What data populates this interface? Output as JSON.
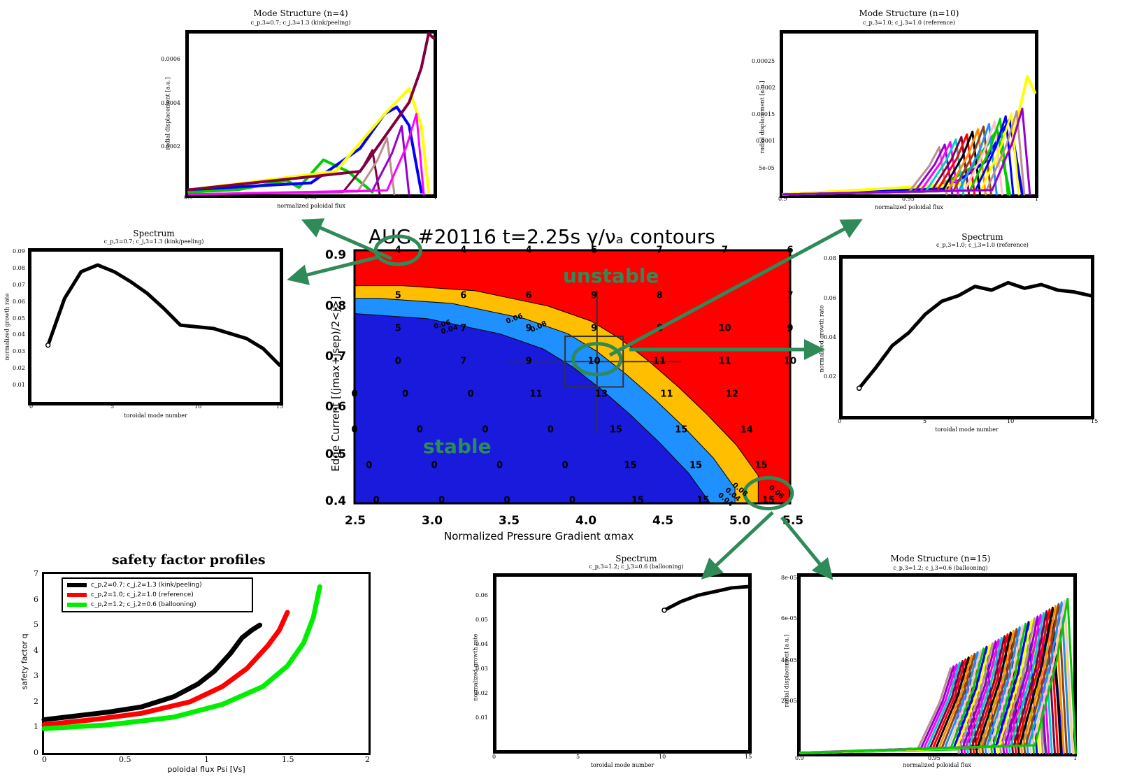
{
  "main": {
    "title": "AUG #20116 t=2.25s γ/νₐ contours",
    "xlabel": "Normalized Pressure Gradient αmax",
    "ylabel": "Edge Current  [(jmax+jsep)/2<j>]",
    "xticks": [
      "2.5",
      "3.0",
      "3.5",
      "4.0",
      "4.5",
      "5.0",
      "5.5"
    ],
    "yticks": [
      "0.4",
      "0.5",
      "0.6",
      "0.7",
      "0.8",
      "0.9"
    ],
    "unstable_label": "unstable",
    "stable_label": "stable",
    "colors": {
      "unstable": "#ff0000",
      "stable": "#1a1adc",
      "band_orange": "#ffbf00",
      "band_light": "#1e90ff",
      "arrow": "#2e8b57"
    },
    "contour_labels": [
      "0.06",
      "0.04",
      "0.06",
      "0.08",
      "0.04",
      "0.08",
      "0.06",
      "0.04"
    ],
    "grid_numbers": [
      {
        "t": "4",
        "x": 2.8,
        "y": 0.9
      },
      {
        "t": "4",
        "x": 3.25,
        "y": 0.9
      },
      {
        "t": "4",
        "x": 3.7,
        "y": 0.9
      },
      {
        "t": "6",
        "x": 4.15,
        "y": 0.9
      },
      {
        "t": "7",
        "x": 4.6,
        "y": 0.9
      },
      {
        "t": "7",
        "x": 5.05,
        "y": 0.9
      },
      {
        "t": "6",
        "x": 5.5,
        "y": 0.9
      },
      {
        "t": "5",
        "x": 2.8,
        "y": 0.81
      },
      {
        "t": "6",
        "x": 3.25,
        "y": 0.81
      },
      {
        "t": "6",
        "x": 3.7,
        "y": 0.81
      },
      {
        "t": "9",
        "x": 4.15,
        "y": 0.81
      },
      {
        "t": "8",
        "x": 4.6,
        "y": 0.81
      },
      {
        "t": "7",
        "x": 5.5,
        "y": 0.81
      },
      {
        "t": "5",
        "x": 2.8,
        "y": 0.745
      },
      {
        "t": "7",
        "x": 3.25,
        "y": 0.745
      },
      {
        "t": "9",
        "x": 3.7,
        "y": 0.745
      },
      {
        "t": "9",
        "x": 4.15,
        "y": 0.745
      },
      {
        "t": "8",
        "x": 4.6,
        "y": 0.745
      },
      {
        "t": "10",
        "x": 5.05,
        "y": 0.745
      },
      {
        "t": "9",
        "x": 5.5,
        "y": 0.745
      },
      {
        "t": "0",
        "x": 2.8,
        "y": 0.68
      },
      {
        "t": "7",
        "x": 3.25,
        "y": 0.68
      },
      {
        "t": "9",
        "x": 3.7,
        "y": 0.68
      },
      {
        "t": "10",
        "x": 4.15,
        "y": 0.68
      },
      {
        "t": "11",
        "x": 4.6,
        "y": 0.68
      },
      {
        "t": "11",
        "x": 5.05,
        "y": 0.68
      },
      {
        "t": "10",
        "x": 5.5,
        "y": 0.68
      },
      {
        "t": "0",
        "x": 2.5,
        "y": 0.615
      },
      {
        "t": "0",
        "x": 2.85,
        "y": 0.615
      },
      {
        "t": "0",
        "x": 3.3,
        "y": 0.615
      },
      {
        "t": "11",
        "x": 3.75,
        "y": 0.615
      },
      {
        "t": "13",
        "x": 4.2,
        "y": 0.615
      },
      {
        "t": "11",
        "x": 4.65,
        "y": 0.615
      },
      {
        "t": "12",
        "x": 5.1,
        "y": 0.615
      },
      {
        "t": "0",
        "x": 2.5,
        "y": 0.545
      },
      {
        "t": "0",
        "x": 2.95,
        "y": 0.545
      },
      {
        "t": "0",
        "x": 3.4,
        "y": 0.545
      },
      {
        "t": "0",
        "x": 3.85,
        "y": 0.545
      },
      {
        "t": "15",
        "x": 4.3,
        "y": 0.545
      },
      {
        "t": "15",
        "x": 4.75,
        "y": 0.545
      },
      {
        "t": "14",
        "x": 5.2,
        "y": 0.545
      },
      {
        "t": "0",
        "x": 2.6,
        "y": 0.475
      },
      {
        "t": "0",
        "x": 3.05,
        "y": 0.475
      },
      {
        "t": "0",
        "x": 3.5,
        "y": 0.475
      },
      {
        "t": "0",
        "x": 3.95,
        "y": 0.475
      },
      {
        "t": "15",
        "x": 4.4,
        "y": 0.475
      },
      {
        "t": "15",
        "x": 4.85,
        "y": 0.475
      },
      {
        "t": "15",
        "x": 5.3,
        "y": 0.475
      },
      {
        "t": "0",
        "x": 2.65,
        "y": 0.405
      },
      {
        "t": "0",
        "x": 3.1,
        "y": 0.405
      },
      {
        "t": "0",
        "x": 3.55,
        "y": 0.405
      },
      {
        "t": "0",
        "x": 4.0,
        "y": 0.405
      },
      {
        "t": "15",
        "x": 4.45,
        "y": 0.405
      },
      {
        "t": "15",
        "x": 4.9,
        "y": 0.405
      },
      {
        "t": "15",
        "x": 5.35,
        "y": 0.405
      }
    ]
  },
  "mode_n4": {
    "title": "Mode Structure (n=4)",
    "subtitle": "c_p,3=0.7; c_j,3=1.3 (kink/peeling)",
    "xlabel": "normalized poloidal flux",
    "ylabel": "radial displacement [a.u.]",
    "yticks": [
      "0.0006",
      "0.0004",
      "0.0002"
    ],
    "xticks": [
      "0.9",
      "0.95",
      "1"
    ]
  },
  "mode_n10": {
    "title": "Mode Structure (n=10)",
    "subtitle": "c_p,3=1.0; c_j,3=1.0 (reference)",
    "xlabel": "normalized poloidal flux",
    "ylabel": "radial displacement [a.u.]",
    "yticks": [
      "0.00025",
      "0.0002",
      "0.00015",
      "0.0001",
      "5e-05"
    ],
    "xticks": [
      "0.9",
      "0.95",
      "1"
    ]
  },
  "mode_n15": {
    "title": "Mode Structure (n=15)",
    "subtitle": "c_p,3=1.2; c_j,3=0.6 (ballooning)",
    "xlabel": "normalized poloidal flux",
    "ylabel": "radial displacement [a.u.]",
    "yticks": [
      "8e-05",
      "6e-05",
      "4e-05",
      "2e-05"
    ],
    "xticks": [
      "0.9",
      "0.95",
      "1"
    ]
  },
  "spectrum_kink": {
    "title": "Spectrum",
    "subtitle": "c_p,3=0.7; c_j,3=1.3 (kink/peeling)",
    "xlabel": "toroidal mode number",
    "ylabel": "normalized growth rate",
    "yticks": [
      "0.09",
      "0.08",
      "0.07",
      "0.06",
      "0.05",
      "0.04",
      "0.03",
      "0.02",
      "0.01"
    ],
    "xticks": [
      "0",
      "5",
      "10",
      "15"
    ]
  },
  "spectrum_ref": {
    "title": "Spectrum",
    "subtitle": "c_p,3=1.0; c_j,3=1.0 (reference)",
    "xlabel": "toroidal mode number",
    "ylabel": "normalized growth rate",
    "yticks": [
      "0.08",
      "0.06",
      "0.04",
      "0.02"
    ],
    "xticks": [
      "0",
      "5",
      "10",
      "15"
    ]
  },
  "spectrum_ball": {
    "title": "Spectrum",
    "subtitle": "c_p,3=1.2; c_j,3=0.6 (ballooning)",
    "xlabel": "toroidal mode number",
    "ylabel": "normalized growth rate",
    "yticks": [
      "0.06",
      "0.05",
      "0.04",
      "0.03",
      "0.02",
      "0.01"
    ],
    "xticks": [
      "0",
      "5",
      "10",
      "15"
    ]
  },
  "safety": {
    "title": "safety factor profiles",
    "xlabel": "poloidal flux Psi [Vs]",
    "ylabel": "safety factor q",
    "yticks": [
      "7",
      "6",
      "5",
      "4",
      "3",
      "2",
      "1",
      "0"
    ],
    "xticks": [
      "0",
      "0.5",
      "1",
      "1.5",
      "2"
    ],
    "legend": [
      {
        "label": "c_p,2=0.7; c_j,2=1.3 (kink/peeling)",
        "color": "#000000"
      },
      {
        "label": "c_p,2=1.0; c_j,2=1.0 (reference)",
        "color": "#ff0000"
      },
      {
        "label": "c_p,2=1.2; c_j,2=0.6 (ballooning)",
        "color": "#00ee00"
      }
    ]
  },
  "chart_data": [
    {
      "type": "heatmap",
      "title": "AUG #20116 t=2.25s γ/νₐ contours",
      "xlabel": "Normalized Pressure Gradient αmax",
      "ylabel": "Edge Current [(jmax+jsep)/2<j>]",
      "xlim": [
        2.5,
        5.5
      ],
      "ylim": [
        0.4,
        0.9
      ],
      "stability_boundary": {
        "x": [
          2.5,
          3.0,
          3.5,
          3.8,
          4.0,
          4.2,
          4.4,
          4.6,
          4.8,
          4.95
        ],
        "y": [
          0.775,
          0.765,
          0.735,
          0.705,
          0.67,
          0.625,
          0.575,
          0.52,
          0.46,
          0.4
        ]
      }
    },
    {
      "type": "line",
      "title": "Spectrum",
      "xlabel": "toroidal mode number",
      "ylabel": "normalized growth rate",
      "xlim": [
        0,
        15
      ],
      "ylim": [
        0,
        0.09
      ],
      "series": [
        {
          "x": [
            1,
            2,
            3,
            4,
            5,
            6,
            7,
            8,
            9,
            10,
            11,
            12,
            13,
            14,
            15
          ],
          "values": [
            0.034,
            0.062,
            0.078,
            0.082,
            0.078,
            0.072,
            0.065,
            0.056,
            0.046,
            0.045,
            0.044,
            0.041,
            0.038,
            0.032,
            0.022
          ]
        }
      ]
    },
    {
      "type": "line",
      "title": "Spectrum",
      "xlabel": "toroidal mode number",
      "ylabel": "normalized growth rate",
      "xlim": [
        0,
        15
      ],
      "ylim": [
        0,
        0.085
      ],
      "series": [
        {
          "x": [
            1,
            2,
            3,
            4,
            5,
            6,
            7,
            8,
            9,
            10,
            11,
            12,
            13,
            14,
            15
          ],
          "values": [
            0.015,
            0.026,
            0.038,
            0.045,
            0.055,
            0.062,
            0.065,
            0.07,
            0.068,
            0.072,
            0.069,
            0.071,
            0.068,
            0.067,
            0.065
          ]
        }
      ]
    },
    {
      "type": "line",
      "title": "Spectrum",
      "xlabel": "toroidal mode number",
      "ylabel": "normalized growth rate",
      "xlim": [
        0,
        15
      ],
      "ylim": [
        0,
        0.07
      ],
      "series": [
        {
          "x": [
            10,
            11,
            12,
            13,
            14,
            15
          ],
          "values": [
            0.0565,
            0.06,
            0.0625,
            0.064,
            0.0655,
            0.066
          ]
        }
      ]
    },
    {
      "type": "line",
      "title": "safety factor profiles",
      "xlabel": "poloidal flux Psi [Vs]",
      "ylabel": "safety factor q",
      "xlim": [
        0,
        2
      ],
      "ylim": [
        0,
        7
      ],
      "series": [
        {
          "name": "c_p,2=0.7; c_j,2=1.3 (kink/peeling)",
          "x": [
            0,
            0.2,
            0.4,
            0.6,
            0.8,
            0.95,
            1.05,
            1.15,
            1.22,
            1.28,
            1.33
          ],
          "values": [
            1.3,
            1.45,
            1.6,
            1.8,
            2.2,
            2.7,
            3.2,
            3.9,
            4.5,
            4.8,
            5.0
          ]
        },
        {
          "name": "c_p,2=1.0; c_j,2=1.0 (reference)",
          "x": [
            0,
            0.3,
            0.6,
            0.9,
            1.1,
            1.25,
            1.38,
            1.45,
            1.5
          ],
          "values": [
            1.1,
            1.3,
            1.55,
            2.0,
            2.6,
            3.3,
            4.2,
            4.8,
            5.5
          ]
        },
        {
          "name": "c_p,2=1.2; c_j,2=0.6 (ballooning)",
          "x": [
            0,
            0.4,
            0.8,
            1.1,
            1.35,
            1.5,
            1.6,
            1.66,
            1.7
          ],
          "values": [
            0.95,
            1.1,
            1.4,
            1.9,
            2.6,
            3.4,
            4.3,
            5.3,
            6.5
          ]
        }
      ]
    },
    {
      "type": "line",
      "title": "Mode Structure (n=4)",
      "xlabel": "normalized poloidal flux",
      "ylabel": "radial displacement [a.u.]",
      "xlim": [
        0.9,
        1.0
      ],
      "ylim": [
        0,
        0.0007
      ],
      "series": [
        {
          "x": [
            0.9,
            0.92,
            0.94,
            0.945,
            0.955,
            0.965,
            0.975
          ],
          "values": [
            1e-05,
            2e-05,
            6e-05,
            3e-05,
            0.00015,
            0.0001,
            1e-05
          ]
        },
        {
          "x": [
            0.9,
            0.95,
            0.97,
            0.98,
            0.985,
            0.99,
            0.995
          ],
          "values": [
            2e-05,
            5e-05,
            0.0002,
            0.00035,
            0.00038,
            0.0003,
            1e-05
          ]
        },
        {
          "x": [
            0.9,
            0.96,
            0.98,
            0.99,
            0.995,
            0.998
          ],
          "values": [
            2e-05,
            0.0001,
            0.00035,
            0.00046,
            0.0003,
            1e-05
          ]
        },
        {
          "x": [
            0.9,
            0.97,
            0.99,
            0.995,
            0.998,
            1.0
          ],
          "values": [
            2e-05,
            0.0001,
            0.0004,
            0.00055,
            0.0007,
            0.00068
          ]
        }
      ]
    },
    {
      "type": "line",
      "title": "Mode Structure (n=10)",
      "xlabel": "normalized poloidal flux",
      "ylabel": "radial displacement [a.u.]",
      "xlim": [
        0.9,
        1.0
      ],
      "ylim": [
        0,
        0.0003
      ],
      "series": [
        {
          "x": [
            0.9,
            0.96,
            0.975,
            0.985,
            0.99
          ],
          "values": [
            0.0,
            1e-05,
            5e-05,
            0.00012,
            0.0
          ]
        },
        {
          "x": [
            0.9,
            0.965,
            0.98,
            0.99,
            0.995
          ],
          "values": [
            0.0,
            1e-05,
            6e-05,
            0.00014,
            0.0
          ]
        },
        {
          "x": [
            0.9,
            0.975,
            0.99,
            0.997,
            1.0
          ],
          "values": [
            0.0,
            2e-05,
            8e-05,
            0.00022,
            0.00019
          ]
        }
      ]
    },
    {
      "type": "line",
      "title": "Mode Structure (n=15)",
      "xlabel": "normalized poloidal flux",
      "ylabel": "radial displacement [a.u.]",
      "xlim": [
        0.9,
        1.0
      ],
      "ylim": [
        0,
        8e-05
      ],
      "series": [
        {
          "x": [
            0.9,
            0.965,
            0.978,
            0.985,
            0.99
          ],
          "values": [
            0.0,
            2e-06,
            2e-05,
            5e-05,
            0.0
          ]
        },
        {
          "x": [
            0.9,
            0.972,
            0.985,
            0.992,
            0.996
          ],
          "values": [
            0.0,
            3e-06,
            3e-05,
            6e-05,
            0.0
          ]
        },
        {
          "x": [
            0.9,
            0.978,
            0.99,
            0.996,
            1.0
          ],
          "values": [
            0.0,
            3e-06,
            3e-05,
            6e-05,
            0.0
          ]
        }
      ]
    }
  ]
}
